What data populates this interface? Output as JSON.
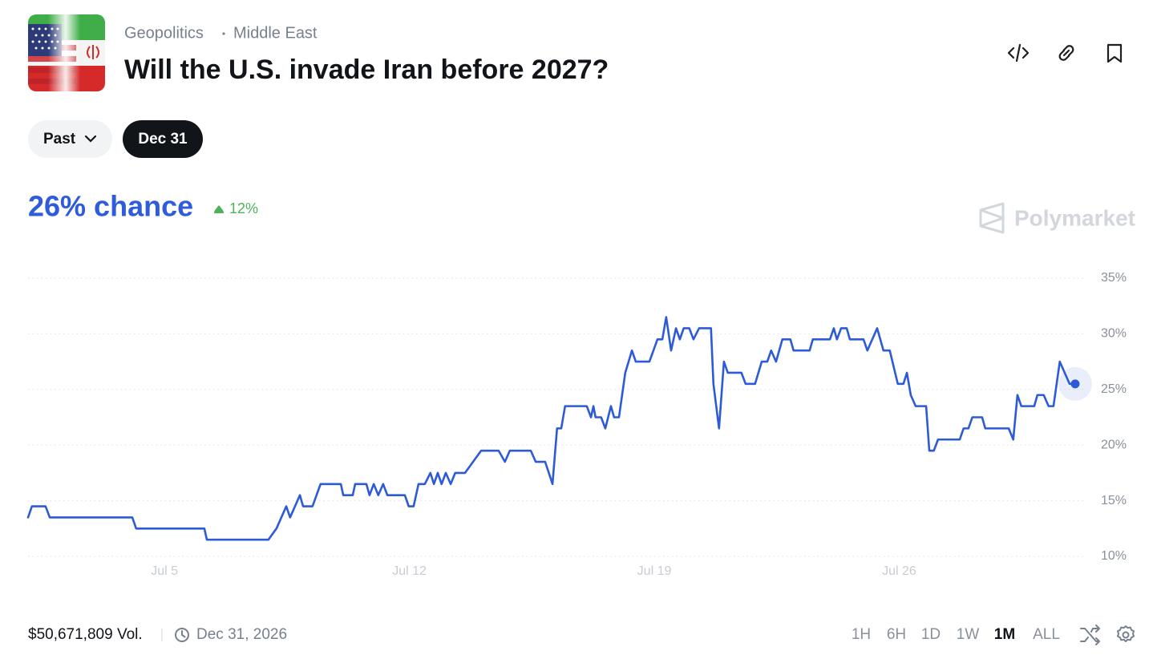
{
  "header": {
    "category": "Geopolitics",
    "subcategory": "Middle East",
    "title": "Will the U.S. invade Iran before 2027?"
  },
  "filters": {
    "past": "Past",
    "date": "Dec 31"
  },
  "summary": {
    "chance": "26% chance",
    "change": "12%"
  },
  "watermark": "Polymarket",
  "chart_data": {
    "type": "line",
    "x": [
      1.1,
      1.21,
      1.6,
      1.72,
      4.08,
      4.19,
      6.14,
      6.21,
      7.97,
      8.2,
      8.48,
      8.59,
      8.87,
      8.96,
      9.23,
      9.46,
      10.04,
      10.11,
      10.38,
      10.45,
      10.77,
      10.86,
      10.98,
      11.11,
      11.25,
      11.37,
      11.87,
      11.98,
      12.12,
      12.26,
      12.44,
      12.6,
      12.7,
      12.81,
      12.92,
      13.04,
      13.18,
      13.31,
      13.59,
      13.82,
      14.05,
      14.55,
      14.73,
      14.87,
      15.47,
      15.61,
      15.88,
      16.09,
      16.22,
      16.34,
      16.45,
      17.07,
      17.19,
      17.26,
      17.32,
      17.48,
      17.6,
      17.76,
      17.85,
      17.99,
      18.17,
      18.36,
      18.47,
      18.86,
      19.09,
      19.23,
      19.34,
      19.48,
      19.62,
      19.73,
      19.84,
      20.0,
      20.12,
      20.28,
      20.62,
      20.69,
      20.85,
      20.99,
      21.1,
      21.49,
      21.61,
      21.88,
      22.07,
      22.23,
      22.34,
      22.48,
      22.66,
      22.89,
      22.98,
      23.44,
      23.53,
      24.02,
      24.13,
      24.22,
      24.34,
      24.5,
      24.59,
      24.98,
      25.09,
      25.37,
      25.55,
      25.73,
      25.96,
      26.12,
      26.22,
      26.33,
      26.47,
      26.77,
      26.86,
      26.99,
      27.11,
      27.73,
      27.84,
      27.98,
      28.09,
      28.37,
      28.46,
      29.13,
      29.26,
      29.38,
      29.49,
      29.86,
      29.95,
      30.13,
      30.27,
      30.41,
      30.59,
      30.73,
      30.87,
      31.03
    ],
    "values": [
      13.5,
      14.5,
      14.5,
      13.5,
      13.5,
      12.5,
      12.5,
      11.5,
      11.5,
      12.5,
      14.5,
      13.5,
      15.5,
      14.5,
      14.5,
      16.5,
      16.5,
      15.5,
      15.5,
      16.5,
      16.5,
      15.5,
      16.5,
      15.5,
      16.5,
      15.5,
      15.5,
      14.5,
      14.5,
      16.5,
      16.5,
      17.5,
      16.5,
      17.5,
      16.5,
      17.5,
      16.5,
      17.5,
      17.5,
      18.5,
      19.5,
      19.5,
      18.5,
      19.5,
      19.5,
      18.5,
      18.5,
      16.5,
      21.5,
      21.5,
      23.5,
      23.5,
      22.5,
      23.5,
      22.5,
      22.5,
      21.5,
      23.5,
      22.5,
      22.5,
      26.5,
      28.5,
      27.5,
      27.5,
      29.5,
      29.5,
      31.5,
      28.5,
      30.5,
      29.5,
      30.5,
      30.5,
      29.5,
      30.5,
      30.5,
      25.5,
      21.5,
      27.5,
      26.5,
      26.5,
      25.5,
      25.5,
      27.5,
      27.5,
      28.5,
      27.5,
      29.5,
      29.5,
      28.5,
      28.5,
      29.5,
      29.5,
      30.5,
      29.5,
      30.5,
      30.5,
      29.5,
      29.5,
      28.5,
      30.5,
      28.5,
      28.5,
      25.5,
      25.5,
      26.5,
      24.5,
      23.5,
      23.5,
      19.5,
      19.5,
      20.5,
      20.5,
      21.5,
      21.5,
      22.5,
      22.5,
      21.5,
      21.5,
      20.5,
      24.5,
      23.5,
      23.5,
      24.5,
      24.5,
      23.5,
      23.5,
      27.5,
      26.5,
      25.5,
      25.5
    ],
    "color": "#2d5bd7",
    "xlim": [
      1.1,
      31.1
    ],
    "ylim": [
      10,
      35
    ],
    "xticks": [
      {
        "value": 5,
        "label": "Jul 5"
      },
      {
        "value": 12,
        "label": "Jul 12"
      },
      {
        "value": 19,
        "label": "Jul 19"
      },
      {
        "value": 26,
        "label": "Jul 26"
      }
    ],
    "yticks": [
      {
        "value": 10,
        "label": "10%"
      },
      {
        "value": 15,
        "label": "15%"
      },
      {
        "value": 20,
        "label": "20%"
      },
      {
        "value": 25,
        "label": "25%"
      },
      {
        "value": 30,
        "label": "30%"
      },
      {
        "value": 35,
        "label": "35%"
      }
    ],
    "grid": true
  },
  "footer": {
    "volume": "$50,671,809 Vol.",
    "end_date": "Dec 31, 2026",
    "ranges": [
      "1H",
      "6H",
      "1D",
      "1W",
      "1M",
      "ALL"
    ],
    "active_range": "1M"
  }
}
